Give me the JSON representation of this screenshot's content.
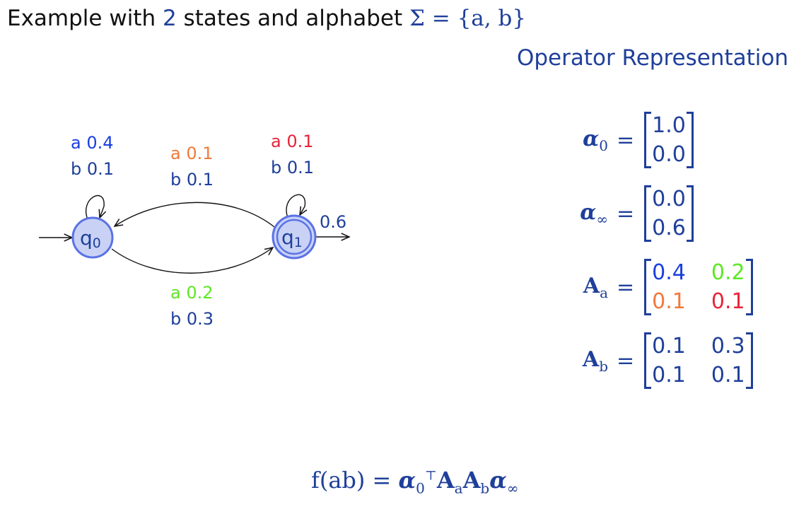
{
  "title": {
    "prefix": "Example with ",
    "count": "2",
    "middle": " states and alphabet ",
    "sigma": "Σ = {a, b}"
  },
  "operator_title": "Operator Representation",
  "automaton": {
    "states": [
      {
        "name": "q",
        "sub": "0",
        "accepting": false,
        "initial": true
      },
      {
        "name": "q",
        "sub": "1",
        "accepting": true,
        "initial": false
      }
    ],
    "final_weight": "0.6",
    "edges": [
      {
        "from": "q0",
        "to": "q0",
        "label_a": "a 0.4",
        "label_b": "b 0.1",
        "color_a": "#1a3fe0"
      },
      {
        "from": "q1",
        "to": "q0",
        "label_a": "a 0.1",
        "label_b": "b 0.1",
        "color_a": "#f07a3a"
      },
      {
        "from": "q1",
        "to": "q1",
        "label_a": "a 0.1",
        "label_b": "b 0.1",
        "color_a": "#e8243a"
      },
      {
        "from": "q0",
        "to": "q1",
        "label_a": "a 0.2",
        "label_b": "b 0.3",
        "color_a": "#5ee825"
      }
    ],
    "state_fill": "#c9d2f5",
    "state_stroke": "#5a72e6",
    "label_b_color": "#1f3f9a"
  },
  "matrices": {
    "alpha0": {
      "lhs": "α",
      "sub": "0",
      "values": [
        "1.0",
        "0.0"
      ]
    },
    "alphainf": {
      "lhs": "α",
      "sub": "∞",
      "values": [
        "0.0",
        "0.6"
      ]
    },
    "Aa": {
      "lhs": "A",
      "sub": "a",
      "values": [
        "0.4",
        "0.2",
        "0.1",
        "0.1"
      ],
      "colors": [
        "#1a3fe0",
        "#5ee825",
        "#f07a3a",
        "#e8243a"
      ]
    },
    "Ab": {
      "lhs": "A",
      "sub": "b",
      "values": [
        "0.1",
        "0.3",
        "0.1",
        "0.1"
      ]
    }
  },
  "formula": {
    "lhs": "f(ab) = ",
    "alpha": "α",
    "alpha_sub": "0",
    "transpose": "⊤",
    "A": "A",
    "a": "a",
    "b": "b",
    "inf": "∞"
  }
}
